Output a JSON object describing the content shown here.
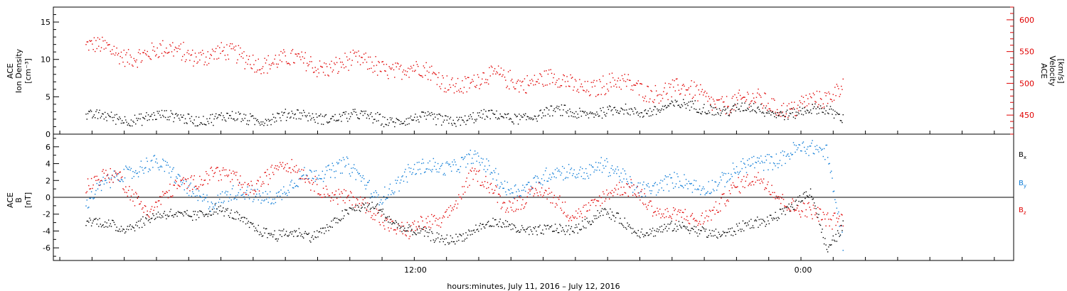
{
  "xlabel": "hours:minutes, July 11, 2016 – July 12, 2016",
  "xtick_labels": [
    "12:00",
    "0:00"
  ],
  "colors": {
    "black": "#000000",
    "red": "#e00000",
    "blue": "#0a7ad6",
    "axis": "#000000"
  },
  "chart_data": [
    {
      "type": "scatter",
      "panel": "top",
      "x_range_hours": [
        -1.0,
        28.8
      ],
      "ylabel_left": [
        "ACE",
        "Ion Density",
        "[cm⁻³]"
      ],
      "ylabel_right": [
        "ACE",
        "Velocity",
        "[km/s]"
      ],
      "ylim_left": [
        0,
        17
      ],
      "ylim_right": [
        420,
        620
      ],
      "yticks_left": [
        0,
        5,
        10,
        15
      ],
      "yticks_right": [
        450,
        500,
        550,
        600
      ],
      "series": [
        {
          "axis": "left",
          "color": "#000000",
          "x": [
            0,
            1,
            2,
            3,
            4,
            5,
            6,
            7,
            8,
            9,
            10,
            11,
            12,
            13,
            14,
            15,
            16,
            17,
            18,
            19,
            20,
            21,
            22,
            23,
            23.5
          ],
          "y": [
            2.2,
            2.3,
            2.2,
            2.4,
            2.0,
            2.2,
            2.3,
            2.5,
            2.4,
            2.2,
            1.9,
            2.0,
            2.2,
            2.4,
            2.6,
            3.0,
            3.1,
            3.0,
            3.8,
            3.6,
            3.4,
            3.2,
            3.0,
            3.1,
            2.5
          ]
        },
        {
          "axis": "right",
          "color": "#e00000",
          "x": [
            0,
            1,
            2,
            3,
            4,
            5,
            6,
            7,
            8,
            9,
            10,
            11,
            12,
            13,
            14,
            15,
            16,
            17,
            18,
            19,
            20,
            21,
            22,
            23,
            23.5
          ],
          "y": [
            555,
            550,
            545,
            552,
            545,
            540,
            535,
            530,
            532,
            528,
            525,
            505,
            502,
            510,
            505,
            500,
            498,
            495,
            490,
            482,
            470,
            470,
            465,
            470,
            510
          ]
        }
      ]
    },
    {
      "type": "scatter",
      "panel": "bottom",
      "x_range_hours": [
        -1.0,
        28.8
      ],
      "ylabel_left": [
        "ACE",
        "B",
        "[nT]"
      ],
      "ylim": [
        -7.5,
        7.5
      ],
      "yticks": [
        -6,
        -4,
        -2,
        0,
        2,
        4,
        6
      ],
      "zero_line": true,
      "series": [
        {
          "name": "B",
          "sub": "x",
          "color": "#000000",
          "x": [
            0,
            1,
            2,
            3,
            4,
            5,
            6,
            7,
            8,
            9,
            10,
            11,
            12,
            13,
            14,
            15,
            16,
            17,
            18,
            19,
            20,
            21,
            22,
            22.5,
            23,
            23.5
          ],
          "y": [
            -3,
            -3.5,
            -2.5,
            -2,
            -1.5,
            -3,
            -4.5,
            -4.5,
            -2,
            -1,
            -4,
            -5,
            -4,
            -3,
            -4,
            -4,
            -1.5,
            -4,
            -3.5,
            -4,
            -4,
            -3,
            -0.5,
            0.5,
            -6.5,
            -3
          ]
        },
        {
          "name": "B",
          "sub": "y",
          "color": "#0a7ad6",
          "x": [
            0,
            1,
            2,
            3,
            4,
            5,
            6,
            7,
            8,
            9,
            10,
            11,
            12,
            13,
            14,
            15,
            16,
            17,
            18,
            19,
            20,
            21,
            22,
            23,
            23.5
          ],
          "y": [
            -1,
            3,
            4,
            2,
            -1,
            1,
            0,
            3,
            4,
            0,
            3,
            3.5,
            5,
            1,
            2,
            3,
            4,
            1,
            2,
            1,
            3,
            4,
            6,
            5,
            -5
          ]
        },
        {
          "name": "B",
          "sub": "z",
          "color": "#e00000",
          "x": [
            0,
            1,
            2,
            3,
            4,
            5,
            6,
            7,
            8,
            9,
            10,
            11,
            12,
            13,
            14,
            15,
            16,
            17,
            18,
            19,
            20,
            21,
            22,
            23,
            23.5
          ],
          "y": [
            1,
            3,
            -2,
            2,
            3,
            1,
            4,
            2,
            0,
            -2,
            -4,
            -3,
            3,
            -1,
            1,
            -2,
            0,
            1,
            -2,
            -3,
            1,
            2,
            -1,
            -3,
            -2
          ]
        }
      ]
    }
  ]
}
